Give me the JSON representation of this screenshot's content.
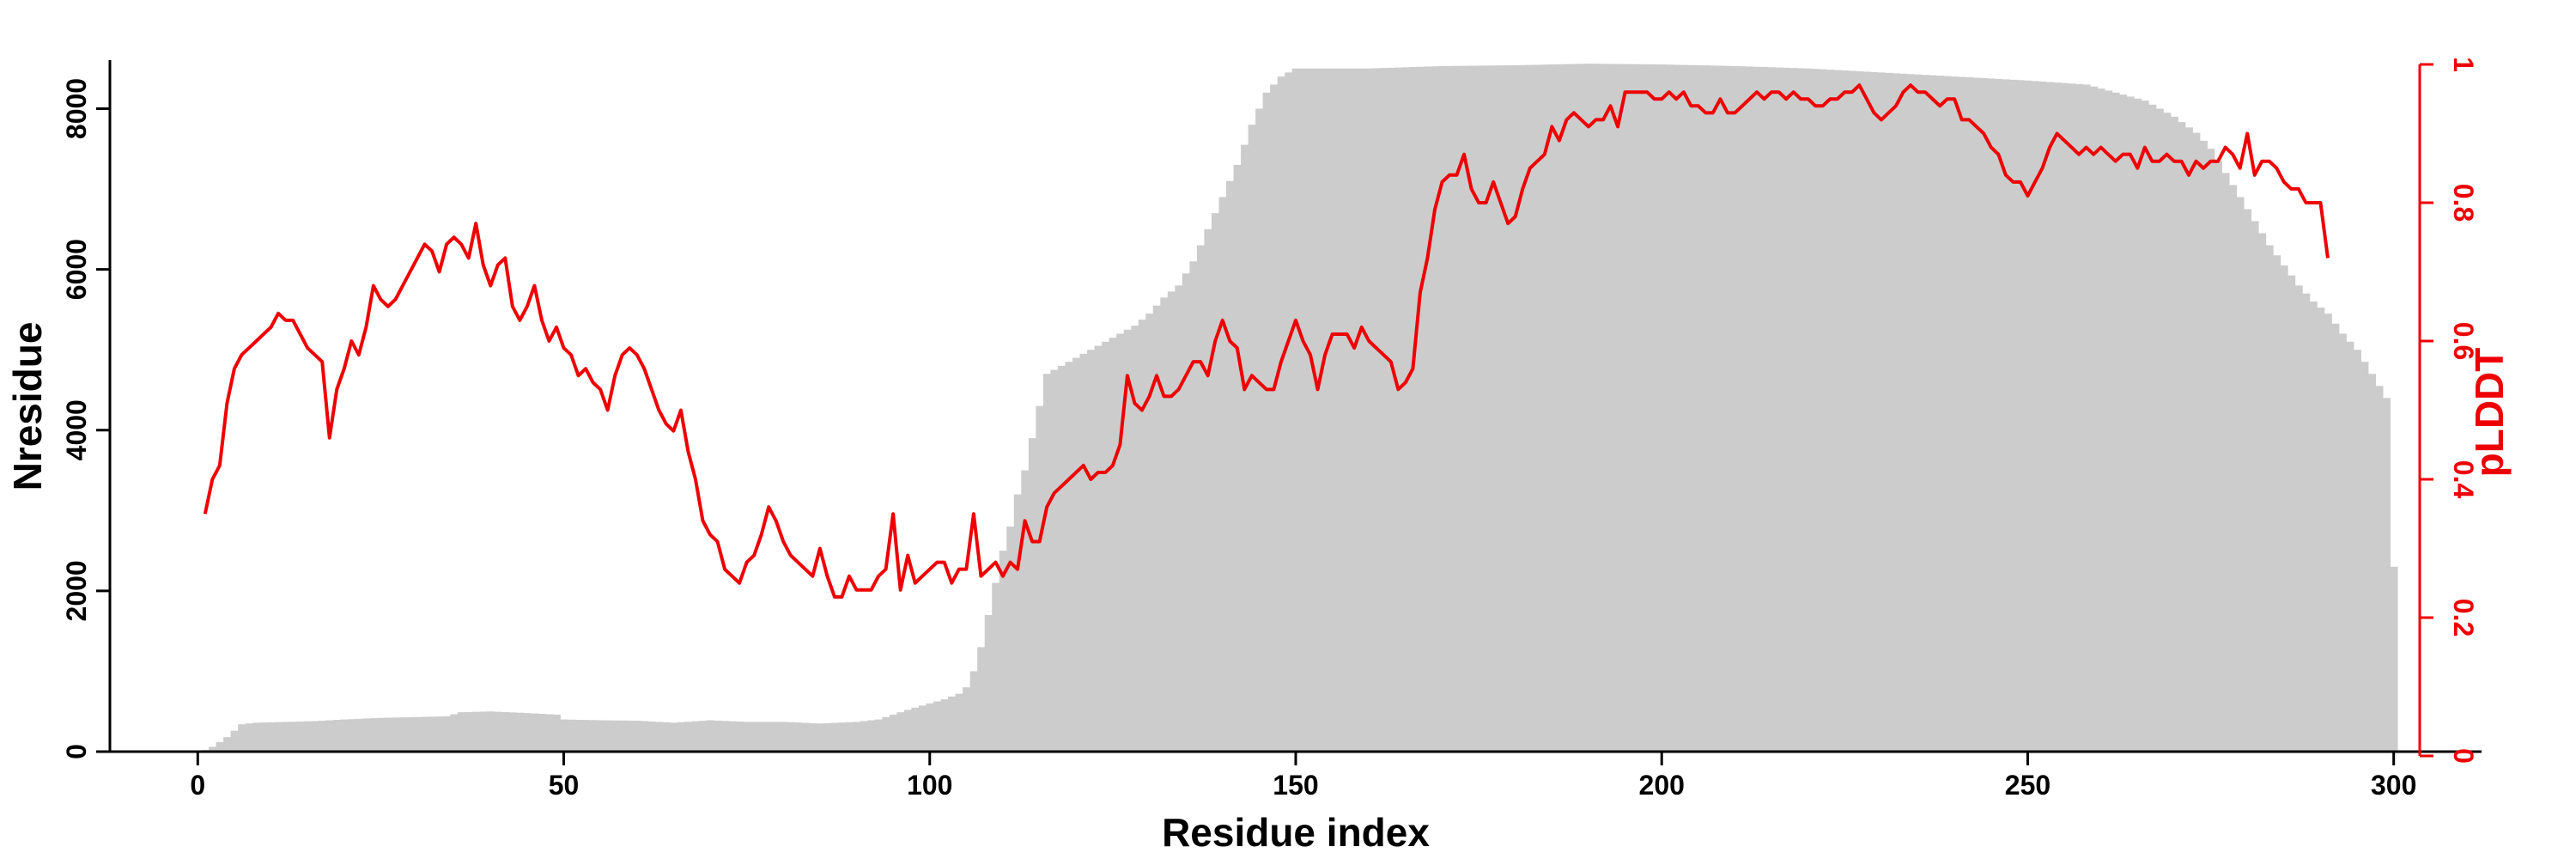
{
  "chart_data": {
    "type": "bar",
    "title": "",
    "xlabel": "Residue index",
    "ylabel": "Nresidue",
    "y2label": "pLDDT",
    "xlim": [
      -12,
      312
    ],
    "ylim": [
      0,
      8700
    ],
    "y2lim": [
      0,
      1
    ],
    "x_ticks": [
      0,
      50,
      100,
      150,
      200,
      250,
      300
    ],
    "y_ticks": [
      0,
      2000,
      4000,
      6000,
      8000
    ],
    "y2_ticks": [
      0,
      0.2,
      0.4,
      0.6,
      0.8,
      1
    ],
    "y2_tick_labels": [
      "0",
      "0.2",
      "0.4",
      "0.6",
      "0.8",
      "1"
    ],
    "colors": {
      "bars": "#cccccc",
      "line": "#ee0000",
      "axis": "#000000",
      "secondary_axis": "#ee0000"
    },
    "nresidue_knots": [
      [
        1,
        20
      ],
      [
        2,
        60
      ],
      [
        3,
        120
      ],
      [
        4,
        180
      ],
      [
        5,
        260
      ],
      [
        6,
        340
      ],
      [
        8,
        360
      ],
      [
        12,
        370
      ],
      [
        16,
        380
      ],
      [
        20,
        400
      ],
      [
        25,
        420
      ],
      [
        30,
        430
      ],
      [
        34,
        440
      ],
      [
        36,
        490
      ],
      [
        40,
        500
      ],
      [
        45,
        480
      ],
      [
        49,
        460
      ],
      [
        50,
        400
      ],
      [
        55,
        390
      ],
      [
        60,
        385
      ],
      [
        65,
        360
      ],
      [
        70,
        390
      ],
      [
        75,
        370
      ],
      [
        80,
        370
      ],
      [
        85,
        350
      ],
      [
        90,
        370
      ],
      [
        93,
        400
      ],
      [
        95,
        460
      ],
      [
        97,
        520
      ],
      [
        100,
        600
      ],
      [
        102,
        650
      ],
      [
        104,
        720
      ],
      [
        105,
        800
      ],
      [
        106,
        1000
      ],
      [
        107,
        1300
      ],
      [
        108,
        1700
      ],
      [
        109,
        2100
      ],
      [
        110,
        2500
      ],
      [
        111,
        2800
      ],
      [
        112,
        3200
      ],
      [
        113,
        3500
      ],
      [
        114,
        3900
      ],
      [
        115,
        4300
      ],
      [
        116,
        4700
      ],
      [
        118,
        4800
      ],
      [
        120,
        4900
      ],
      [
        122,
        5000
      ],
      [
        124,
        5100
      ],
      [
        126,
        5200
      ],
      [
        128,
        5300
      ],
      [
        130,
        5450
      ],
      [
        132,
        5650
      ],
      [
        134,
        5800
      ],
      [
        136,
        6100
      ],
      [
        138,
        6500
      ],
      [
        140,
        6900
      ],
      [
        142,
        7300
      ],
      [
        144,
        7800
      ],
      [
        146,
        8200
      ],
      [
        148,
        8400
      ],
      [
        150,
        8500
      ],
      [
        160,
        8500
      ],
      [
        170,
        8530
      ],
      [
        180,
        8540
      ],
      [
        190,
        8560
      ],
      [
        200,
        8550
      ],
      [
        210,
        8530
      ],
      [
        220,
        8500
      ],
      [
        230,
        8450
      ],
      [
        240,
        8400
      ],
      [
        250,
        8350
      ],
      [
        258,
        8300
      ],
      [
        262,
        8200
      ],
      [
        266,
        8100
      ],
      [
        270,
        7900
      ],
      [
        273,
        7700
      ],
      [
        275,
        7500
      ],
      [
        277,
        7200
      ],
      [
        279,
        6900
      ],
      [
        281,
        6600
      ],
      [
        283,
        6300
      ],
      [
        285,
        6050
      ],
      [
        287,
        5800
      ],
      [
        289,
        5600
      ],
      [
        291,
        5450
      ],
      [
        293,
        5200
      ],
      [
        295,
        5000
      ],
      [
        297,
        4700
      ],
      [
        299,
        4400
      ],
      [
        300,
        2300
      ]
    ],
    "plddt": [
      0.35,
      0.4,
      0.42,
      0.51,
      0.56,
      0.58,
      0.59,
      0.6,
      0.61,
      0.62,
      0.64,
      0.63,
      0.63,
      0.61,
      0.59,
      0.58,
      0.57,
      0.46,
      0.53,
      0.56,
      0.6,
      0.58,
      0.62,
      0.68,
      0.66,
      0.65,
      0.66,
      0.68,
      0.7,
      0.72,
      0.74,
      0.73,
      0.7,
      0.74,
      0.75,
      0.74,
      0.72,
      0.77,
      0.71,
      0.68,
      0.71,
      0.72,
      0.65,
      0.63,
      0.65,
      0.68,
      0.63,
      0.6,
      0.62,
      0.59,
      0.58,
      0.55,
      0.56,
      0.54,
      0.53,
      0.5,
      0.55,
      0.58,
      0.59,
      0.58,
      0.56,
      0.53,
      0.5,
      0.48,
      0.47,
      0.5,
      0.44,
      0.4,
      0.34,
      0.32,
      0.31,
      0.27,
      0.26,
      0.25,
      0.28,
      0.29,
      0.32,
      0.36,
      0.34,
      0.31,
      0.29,
      0.28,
      0.27,
      0.26,
      0.3,
      0.26,
      0.23,
      0.23,
      0.26,
      0.24,
      0.24,
      0.24,
      0.26,
      0.27,
      0.35,
      0.24,
      0.29,
      0.25,
      0.26,
      0.27,
      0.28,
      0.28,
      0.25,
      0.27,
      0.27,
      0.35,
      0.26,
      0.27,
      0.28,
      0.26,
      0.28,
      0.27,
      0.34,
      0.31,
      0.31,
      0.36,
      0.38,
      0.39,
      0.4,
      0.41,
      0.42,
      0.4,
      0.41,
      0.41,
      0.42,
      0.45,
      0.55,
      0.51,
      0.5,
      0.52,
      0.55,
      0.52,
      0.52,
      0.53,
      0.55,
      0.57,
      0.57,
      0.55,
      0.6,
      0.63,
      0.6,
      0.59,
      0.53,
      0.55,
      0.54,
      0.53,
      0.53,
      0.57,
      0.6,
      0.63,
      0.6,
      0.58,
      0.53,
      0.58,
      0.61,
      0.61,
      0.61,
      0.59,
      0.62,
      0.6,
      0.59,
      0.58,
      0.57,
      0.53,
      0.54,
      0.56,
      0.67,
      0.72,
      0.79,
      0.83,
      0.84,
      0.84,
      0.87,
      0.82,
      0.8,
      0.8,
      0.83,
      0.8,
      0.77,
      0.78,
      0.82,
      0.85,
      0.86,
      0.87,
      0.91,
      0.89,
      0.92,
      0.93,
      0.92,
      0.91,
      0.92,
      0.92,
      0.94,
      0.91,
      0.96,
      0.96,
      0.96,
      0.96,
      0.95,
      0.95,
      0.96,
      0.95,
      0.96,
      0.94,
      0.94,
      0.93,
      0.93,
      0.95,
      0.93,
      0.93,
      0.94,
      0.95,
      0.96,
      0.95,
      0.96,
      0.96,
      0.95,
      0.96,
      0.95,
      0.95,
      0.94,
      0.94,
      0.95,
      0.95,
      0.96,
      0.96,
      0.97,
      0.95,
      0.93,
      0.92,
      0.93,
      0.94,
      0.96,
      0.97,
      0.96,
      0.96,
      0.95,
      0.94,
      0.95,
      0.95,
      0.92,
      0.92,
      0.91,
      0.9,
      0.88,
      0.87,
      0.84,
      0.83,
      0.83,
      0.81,
      0.83,
      0.85,
      0.88,
      0.9,
      0.89,
      0.88,
      0.87,
      0.88,
      0.87,
      0.88,
      0.87,
      0.86,
      0.87,
      0.87,
      0.85,
      0.88,
      0.86,
      0.86,
      0.87,
      0.86,
      0.86,
      0.84,
      0.86,
      0.85,
      0.86,
      0.86,
      0.88,
      0.87,
      0.85,
      0.9,
      0.84,
      0.86,
      0.86,
      0.85,
      0.83,
      0.82,
      0.82,
      0.8,
      0.8,
      0.8,
      0.72
    ]
  }
}
